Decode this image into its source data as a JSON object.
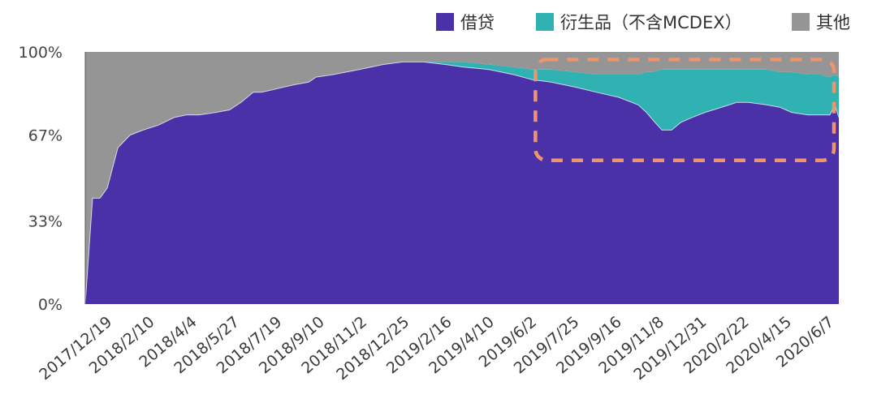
{
  "chart_data": {
    "type": "area",
    "stacked": "percent",
    "title": "",
    "xlabel": "",
    "ylabel": "",
    "ylim": [
      0,
      100
    ],
    "yticks": [
      "0%",
      "33%",
      "67%",
      "100%"
    ],
    "grid": false,
    "legend_position": "top-right",
    "x_tick_labels": [
      "2017/12/19",
      "2018/2/10",
      "2018/4/4",
      "2018/5/27",
      "2018/7/19",
      "2018/9/10",
      "2018/11/2",
      "2018/12/25",
      "2019/2/16",
      "2019/4/10",
      "2019/6/2",
      "2019/7/25",
      "2019/9/16",
      "2019/11/8",
      "2019/12/31",
      "2020/2/22",
      "2020/4/15",
      "2020/6/7"
    ],
    "x": [
      "2017/12/1",
      "2017/12/10",
      "2017/12/19",
      "2017/12/28",
      "2018/1/10",
      "2018/1/25",
      "2018/2/10",
      "2018/3/1",
      "2018/3/20",
      "2018/4/4",
      "2018/4/20",
      "2018/5/10",
      "2018/5/27",
      "2018/6/10",
      "2018/6/25",
      "2018/7/5",
      "2018/7/19",
      "2018/8/1",
      "2018/8/15",
      "2018/9/1",
      "2018/9/10",
      "2018/10/1",
      "2018/11/2",
      "2018/12/1",
      "2018/12/25",
      "2019/1/20",
      "2019/2/16",
      "2019/3/10",
      "2019/4/10",
      "2019/5/10",
      "2019/6/2",
      "2019/6/25",
      "2019/7/25",
      "2019/8/20",
      "2019/9/16",
      "2019/10/10",
      "2019/10/20",
      "2019/10/28",
      "2019/11/8",
      "2019/11/20",
      "2019/12/1",
      "2019/12/15",
      "2019/12/31",
      "2020/1/20",
      "2020/2/8",
      "2020/2/22",
      "2020/3/15",
      "2020/4/1",
      "2020/4/15",
      "2020/5/5",
      "2020/5/20",
      "2020/6/1",
      "2020/6/7",
      "2020/6/12"
    ],
    "series": [
      {
        "name": "借贷",
        "color": "#4a31a8",
        "values": [
          0,
          42,
          42,
          46,
          62,
          67,
          69,
          71,
          74,
          75,
          75,
          76,
          77,
          80,
          84,
          84,
          85,
          86,
          87,
          88,
          90,
          91,
          93,
          95,
          96,
          96,
          95,
          94,
          93,
          91,
          89,
          88,
          86,
          84,
          82,
          79,
          76,
          73,
          69,
          69,
          72,
          74,
          76,
          78,
          80,
          80,
          79,
          78,
          76,
          75,
          75,
          75,
          79,
          74
        ]
      },
      {
        "name": "衍生品（不含MCDEX）",
        "color": "#2fb2b1",
        "values": [
          0,
          0,
          0,
          0,
          0,
          0,
          0,
          0,
          0,
          0,
          0,
          0,
          0,
          0,
          0,
          0,
          0,
          0,
          0,
          0,
          0,
          0,
          0,
          0,
          0,
          0,
          1,
          2,
          2,
          3,
          4,
          5,
          6,
          7,
          9,
          12,
          16,
          19,
          24,
          24,
          21,
          19,
          17,
          15,
          13,
          13,
          14,
          14,
          16,
          16,
          16,
          15,
          12,
          16
        ]
      },
      {
        "name": "其他",
        "color": "#959595",
        "values": [
          100,
          58,
          58,
          54,
          38,
          33,
          31,
          29,
          26,
          25,
          25,
          24,
          23,
          20,
          16,
          16,
          15,
          14,
          13,
          12,
          10,
          9,
          7,
          5,
          4,
          4,
          4,
          4,
          5,
          6,
          7,
          7,
          8,
          9,
          9,
          9,
          8,
          8,
          7,
          7,
          7,
          7,
          7,
          7,
          7,
          7,
          7,
          8,
          8,
          9,
          9,
          10,
          9,
          10
        ]
      }
    ],
    "highlight_box": {
      "start": "2019/6/2",
      "end": "2020/6/12",
      "ymin": 57,
      "ymax": 97,
      "color": "#f0956b"
    }
  }
}
